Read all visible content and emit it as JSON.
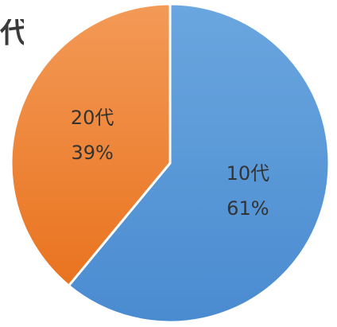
{
  "chart_data": {
    "type": "pie",
    "title_fragment": "代",
    "slices": [
      {
        "label": "10代",
        "value": 61,
        "value_label": "61%",
        "color_top": "#6aa6df",
        "color_bottom": "#4a8bd0"
      },
      {
        "label": "20代",
        "value": 39,
        "value_label": "39%",
        "color_top": "#f39a57",
        "color_bottom": "#e9731f"
      }
    ],
    "start": "12 o'clock",
    "direction": "clockwise",
    "border_color": "#ffffff"
  }
}
